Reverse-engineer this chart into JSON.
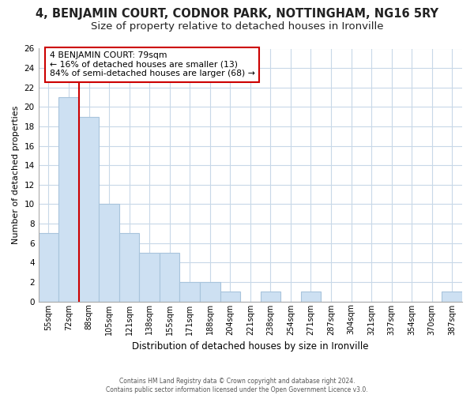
{
  "title": "4, BENJAMIN COURT, CODNOR PARK, NOTTINGHAM, NG16 5RY",
  "subtitle": "Size of property relative to detached houses in Ironville",
  "xlabel": "Distribution of detached houses by size in Ironville",
  "ylabel": "Number of detached properties",
  "bar_labels": [
    "55sqm",
    "72sqm",
    "88sqm",
    "105sqm",
    "121sqm",
    "138sqm",
    "155sqm",
    "171sqm",
    "188sqm",
    "204sqm",
    "221sqm",
    "238sqm",
    "254sqm",
    "271sqm",
    "287sqm",
    "304sqm",
    "321sqm",
    "337sqm",
    "354sqm",
    "370sqm",
    "387sqm"
  ],
  "bar_values": [
    7,
    21,
    19,
    10,
    7,
    5,
    5,
    2,
    2,
    1,
    0,
    1,
    0,
    1,
    0,
    0,
    0,
    0,
    0,
    0,
    1
  ],
  "bar_color": "#cde0f2",
  "bar_edge_color": "#a8c4dc",
  "property_line_label": "4 BENJAMIN COURT: 79sqm",
  "annotation_smaller": "← 16% of detached houses are smaller (13)",
  "annotation_larger": "84% of semi-detached houses are larger (68) →",
  "annotation_box_color": "#ffffff",
  "annotation_box_edge": "#cc0000",
  "property_line_color": "#cc0000",
  "ylim": [
    0,
    26
  ],
  "yticks": [
    0,
    2,
    4,
    6,
    8,
    10,
    12,
    14,
    16,
    18,
    20,
    22,
    24,
    26
  ],
  "footer_line1": "Contains HM Land Registry data © Crown copyright and database right 2024.",
  "footer_line2": "Contains public sector information licensed under the Open Government Licence v3.0.",
  "background_color": "#ffffff",
  "grid_color": "#c8d8e8",
  "title_fontsize": 10.5,
  "subtitle_fontsize": 9.5
}
